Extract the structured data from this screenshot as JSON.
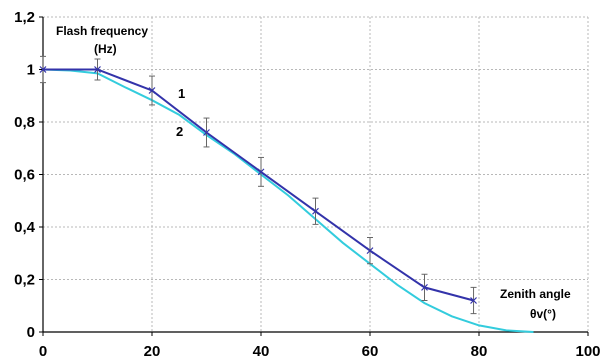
{
  "chart_data": {
    "type": "line",
    "xlim": [
      0,
      100
    ],
    "ylim": [
      0,
      1.2
    ],
    "x_ticks": [
      "0",
      "20",
      "40",
      "60",
      "80",
      "100"
    ],
    "y_ticks": [
      "0",
      "0,2",
      "0,4",
      "0,6",
      "0,8",
      "1",
      "1,2"
    ],
    "grid": true,
    "ylabel_line1": "Flash frequency",
    "ylabel_line2": "(Hz)",
    "xlabel_line1": "Zenith angle",
    "xlabel_line2": "θv(°)",
    "colors": {
      "series_1": "#3333aa",
      "series_2": "#33ccdd",
      "grid": "#b8b8b8",
      "error_bar": "#666666"
    },
    "series": [
      {
        "name": "1",
        "marker": "x",
        "x": [
          0,
          10,
          20,
          30,
          40,
          50,
          60,
          70,
          79
        ],
        "y": [
          1.0,
          1.0,
          0.92,
          0.76,
          0.61,
          0.46,
          0.31,
          0.17,
          0.12
        ],
        "err": [
          0.05,
          0.04,
          0.055,
          0.055,
          0.055,
          0.05,
          0.05,
          0.05,
          0.05
        ]
      },
      {
        "name": "2",
        "x": [
          0,
          5,
          10,
          15,
          20,
          25,
          30,
          35,
          40,
          45,
          50,
          55,
          60,
          65,
          70,
          75,
          80,
          85,
          90
        ],
        "y": [
          1.0,
          0.996,
          0.985,
          0.933,
          0.883,
          0.827,
          0.75,
          0.68,
          0.6,
          0.52,
          0.43,
          0.34,
          0.26,
          0.18,
          0.11,
          0.06,
          0.025,
          0.006,
          0.0
        ]
      }
    ]
  }
}
